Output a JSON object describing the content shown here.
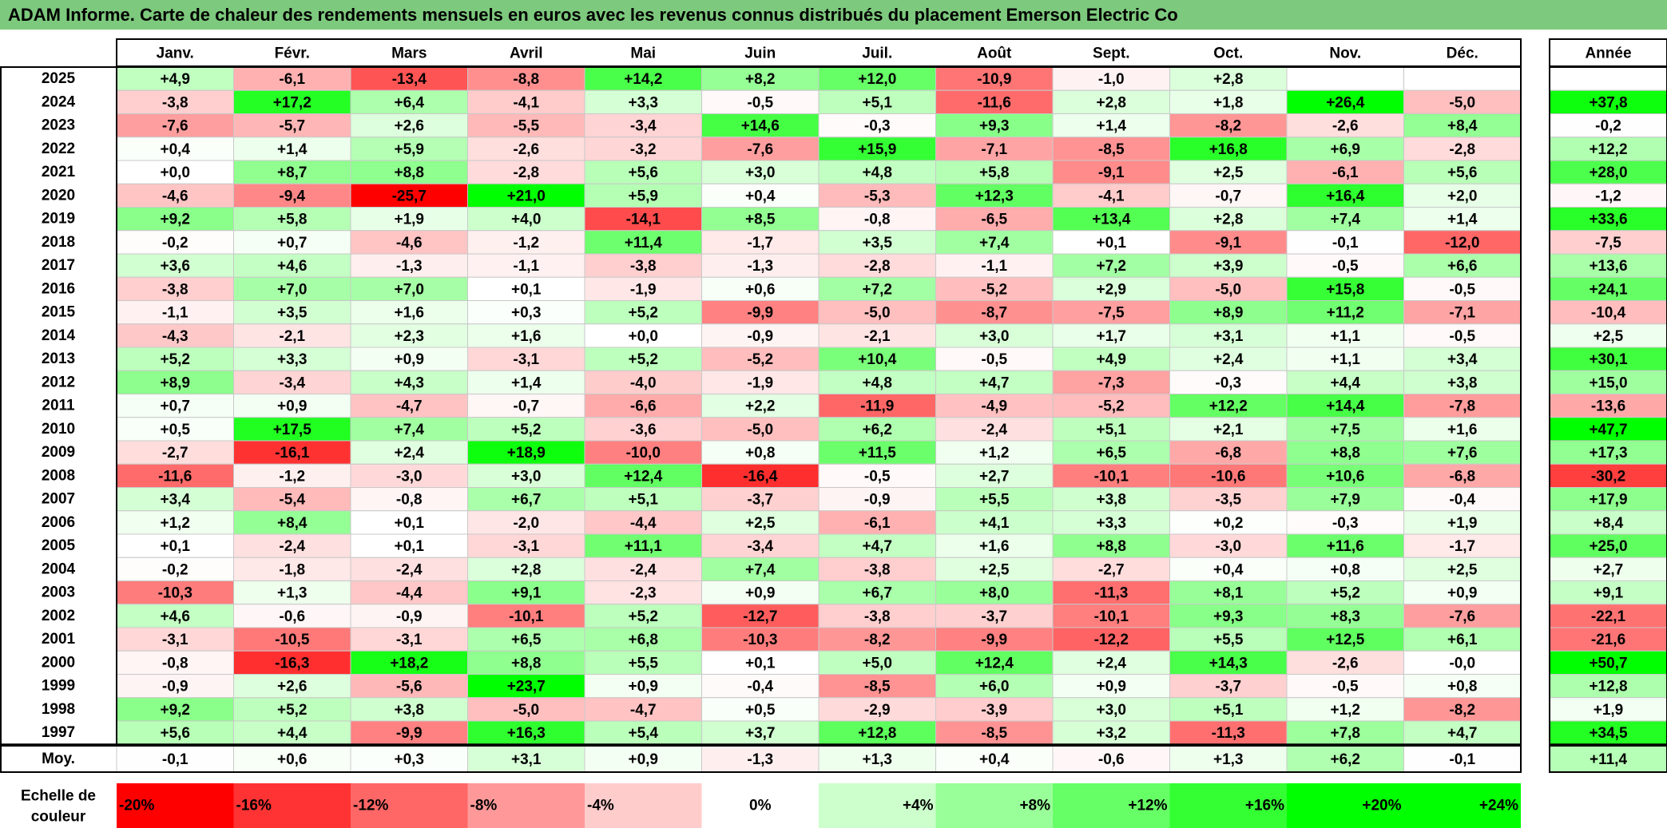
{
  "title": "ADAM Informe. Carte de chaleur des rendements mensuels en euros avec les revenus connus distribués du placement Emerson Electric Co",
  "chart_data": {
    "type": "heatmap",
    "months": [
      "Janv.",
      "Févr.",
      "Mars",
      "Avril",
      "Mai",
      "Juin",
      "Juil.",
      "Août",
      "Sept.",
      "Oct.",
      "Nov.",
      "Déc."
    ],
    "year_header": "Année",
    "rows": [
      {
        "year": "2025",
        "values": [
          "+4,9",
          "-6,1",
          "-13,4",
          "-8,8",
          "+14,2",
          "+8,2",
          "+12,0",
          "-10,9",
          "-1,0",
          "+2,8",
          "",
          ""
        ],
        "annual": ""
      },
      {
        "year": "2024",
        "values": [
          "-3,8",
          "+17,2",
          "+6,4",
          "-4,1",
          "+3,3",
          "-0,5",
          "+5,1",
          "-11,6",
          "+2,8",
          "+1,8",
          "+26,4",
          "-5,0"
        ],
        "annual": "+37,8"
      },
      {
        "year": "2023",
        "values": [
          "-7,6",
          "-5,7",
          "+2,6",
          "-5,5",
          "-3,4",
          "+14,6",
          "-0,3",
          "+9,3",
          "+1,4",
          "-8,2",
          "-2,6",
          "+8,4"
        ],
        "annual": "-0,2"
      },
      {
        "year": "2022",
        "values": [
          "+0,4",
          "+1,4",
          "+5,9",
          "-2,6",
          "-3,2",
          "-7,6",
          "+15,9",
          "-7,1",
          "-8,5",
          "+16,8",
          "+6,9",
          "-2,8"
        ],
        "annual": "+12,2"
      },
      {
        "year": "2021",
        "values": [
          "+0,0",
          "+8,7",
          "+8,8",
          "-2,8",
          "+5,6",
          "+3,0",
          "+4,8",
          "+5,8",
          "-9,1",
          "+2,5",
          "-6,1",
          "+5,6"
        ],
        "annual": "+28,0"
      },
      {
        "year": "2020",
        "values": [
          "-4,6",
          "-9,4",
          "-25,7",
          "+21,0",
          "+5,9",
          "+0,4",
          "-5,3",
          "+12,3",
          "-4,1",
          "-0,7",
          "+16,4",
          "+2,0"
        ],
        "annual": "-1,2"
      },
      {
        "year": "2019",
        "values": [
          "+9,2",
          "+5,8",
          "+1,9",
          "+4,0",
          "-14,1",
          "+8,5",
          "-0,8",
          "-6,5",
          "+13,4",
          "+2,8",
          "+7,4",
          "+1,4"
        ],
        "annual": "+33,6"
      },
      {
        "year": "2018",
        "values": [
          "-0,2",
          "+0,7",
          "-4,6",
          "-1,2",
          "+11,4",
          "-1,7",
          "+3,5",
          "+7,4",
          "+0,1",
          "-9,1",
          "-0,1",
          "-12,0"
        ],
        "annual": "-7,5"
      },
      {
        "year": "2017",
        "values": [
          "+3,6",
          "+4,6",
          "-1,3",
          "-1,1",
          "-3,8",
          "-1,3",
          "-2,8",
          "-1,1",
          "+7,2",
          "+3,9",
          "-0,5",
          "+6,6"
        ],
        "annual": "+13,6"
      },
      {
        "year": "2016",
        "values": [
          "-3,8",
          "+7,0",
          "+7,0",
          "+0,1",
          "-1,9",
          "+0,6",
          "+7,2",
          "-5,2",
          "+2,9",
          "-5,0",
          "+15,8",
          "-0,5"
        ],
        "annual": "+24,1"
      },
      {
        "year": "2015",
        "values": [
          "-1,1",
          "+3,5",
          "+1,6",
          "+0,3",
          "+5,2",
          "-9,9",
          "-5,0",
          "-8,7",
          "-7,5",
          "+8,9",
          "+11,2",
          "-7,1"
        ],
        "annual": "-10,4"
      },
      {
        "year": "2014",
        "values": [
          "-4,3",
          "-2,1",
          "+2,3",
          "+1,6",
          "+0,0",
          "-0,9",
          "-2,1",
          "+3,0",
          "+1,7",
          "+3,1",
          "+1,1",
          "-0,5"
        ],
        "annual": "+2,5"
      },
      {
        "year": "2013",
        "values": [
          "+5,2",
          "+3,3",
          "+0,9",
          "-3,1",
          "+5,2",
          "-5,2",
          "+10,4",
          "-0,5",
          "+4,9",
          "+2,4",
          "+1,1",
          "+3,4"
        ],
        "annual": "+30,1"
      },
      {
        "year": "2012",
        "values": [
          "+8,9",
          "-3,4",
          "+4,3",
          "+1,4",
          "-4,0",
          "-1,9",
          "+4,8",
          "+4,7",
          "-7,3",
          "-0,3",
          "+4,4",
          "+3,8"
        ],
        "annual": "+15,0"
      },
      {
        "year": "2011",
        "values": [
          "+0,7",
          "+0,9",
          "-4,7",
          "-0,7",
          "-6,6",
          "+2,2",
          "-11,9",
          "-4,9",
          "-5,2",
          "+12,2",
          "+14,4",
          "-7,8"
        ],
        "annual": "-13,6"
      },
      {
        "year": "2010",
        "values": [
          "+0,5",
          "+17,5",
          "+7,4",
          "+5,2",
          "-3,6",
          "-5,0",
          "+6,2",
          "-2,4",
          "+5,1",
          "+2,1",
          "+7,5",
          "+1,6"
        ],
        "annual": "+47,7"
      },
      {
        "year": "2009",
        "values": [
          "-2,7",
          "-16,1",
          "+2,4",
          "+18,9",
          "-10,0",
          "+0,8",
          "+11,5",
          "+1,2",
          "+6,5",
          "-6,8",
          "+8,8",
          "+7,6"
        ],
        "annual": "+17,3"
      },
      {
        "year": "2008",
        "values": [
          "-11,6",
          "-1,2",
          "-3,0",
          "+3,0",
          "+12,4",
          "-16,4",
          "-0,5",
          "+2,7",
          "-10,1",
          "-10,6",
          "+10,6",
          "-6,8"
        ],
        "annual": "-30,2"
      },
      {
        "year": "2007",
        "values": [
          "+3,4",
          "-5,4",
          "-0,8",
          "+6,7",
          "+5,1",
          "-3,7",
          "-0,9",
          "+5,5",
          "+3,8",
          "-3,5",
          "+7,9",
          "-0,4"
        ],
        "annual": "+17,9"
      },
      {
        "year": "2006",
        "values": [
          "+1,2",
          "+8,4",
          "+0,1",
          "-2,0",
          "-4,4",
          "+2,5",
          "-6,1",
          "+4,1",
          "+3,3",
          "+0,2",
          "-0,3",
          "+1,9"
        ],
        "annual": "+8,4"
      },
      {
        "year": "2005",
        "values": [
          "+0,1",
          "-2,4",
          "+0,1",
          "-3,1",
          "+11,1",
          "-3,4",
          "+4,7",
          "+1,6",
          "+8,8",
          "-3,0",
          "+11,6",
          "-1,7"
        ],
        "annual": "+25,0"
      },
      {
        "year": "2004",
        "values": [
          "-0,2",
          "-1,8",
          "-2,4",
          "+2,8",
          "-2,4",
          "+7,4",
          "-3,8",
          "+2,5",
          "-2,7",
          "+0,4",
          "+0,8",
          "+2,5"
        ],
        "annual": "+2,7"
      },
      {
        "year": "2003",
        "values": [
          "-10,3",
          "+1,3",
          "-4,4",
          "+9,1",
          "-2,3",
          "+0,9",
          "+6,7",
          "+8,0",
          "-11,3",
          "+8,1",
          "+5,2",
          "+0,9"
        ],
        "annual": "+9,1"
      },
      {
        "year": "2002",
        "values": [
          "+4,6",
          "-0,6",
          "-0,9",
          "-10,1",
          "+5,2",
          "-12,7",
          "-3,8",
          "-3,7",
          "-10,1",
          "+9,3",
          "+8,3",
          "-7,6"
        ],
        "annual": "-22,1"
      },
      {
        "year": "2001",
        "values": [
          "-3,1",
          "-10,5",
          "-3,1",
          "+6,5",
          "+6,8",
          "-10,3",
          "-8,2",
          "-9,9",
          "-12,2",
          "+5,5",
          "+12,5",
          "+6,1"
        ],
        "annual": "-21,6"
      },
      {
        "year": "2000",
        "values": [
          "-0,8",
          "-16,3",
          "+18,2",
          "+8,8",
          "+5,5",
          "+0,1",
          "+5,0",
          "+12,4",
          "+2,4",
          "+14,3",
          "-2,6",
          "-0,0"
        ],
        "annual": "+50,7"
      },
      {
        "year": "1999",
        "values": [
          "-0,9",
          "+2,6",
          "-5,6",
          "+23,7",
          "+0,9",
          "-0,4",
          "-8,5",
          "+6,0",
          "+0,9",
          "-3,7",
          "-0,5",
          "+0,8"
        ],
        "annual": "+12,8"
      },
      {
        "year": "1998",
        "values": [
          "+9,2",
          "+5,2",
          "+3,8",
          "-5,0",
          "-4,7",
          "+0,5",
          "-2,9",
          "-3,9",
          "+3,0",
          "+5,1",
          "+1,2",
          "-8,2"
        ],
        "annual": "+1,9"
      },
      {
        "year": "1997",
        "values": [
          "+5,6",
          "+4,4",
          "-9,9",
          "+16,3",
          "+5,4",
          "+3,7",
          "+12,8",
          "-8,5",
          "+3,2",
          "-11,3",
          "+7,8",
          "+4,7"
        ],
        "annual": "+34,5"
      }
    ],
    "average": {
      "label": "Moy.",
      "values": [
        "-0,1",
        "+0,6",
        "+0,3",
        "+3,1",
        "+0,9",
        "-1,3",
        "+1,3",
        "+0,4",
        "-0,6",
        "+1,3",
        "+6,2",
        "-0,1"
      ],
      "annual": "+11,4"
    },
    "scale": {
      "label": [
        "Echelle de",
        "couleur"
      ],
      "steps": [
        "-20%",
        "-16%",
        "-12%",
        "-8%",
        "-4%",
        "0%",
        "+4%",
        "+8%",
        "+12%",
        "+16%",
        "+20%",
        "+24%"
      ]
    },
    "colors": {
      "negative_max": "#ff0000",
      "positive_max": "#00ff00",
      "neutral": "#ffffff",
      "title_bg": "#7dc97d"
    }
  }
}
